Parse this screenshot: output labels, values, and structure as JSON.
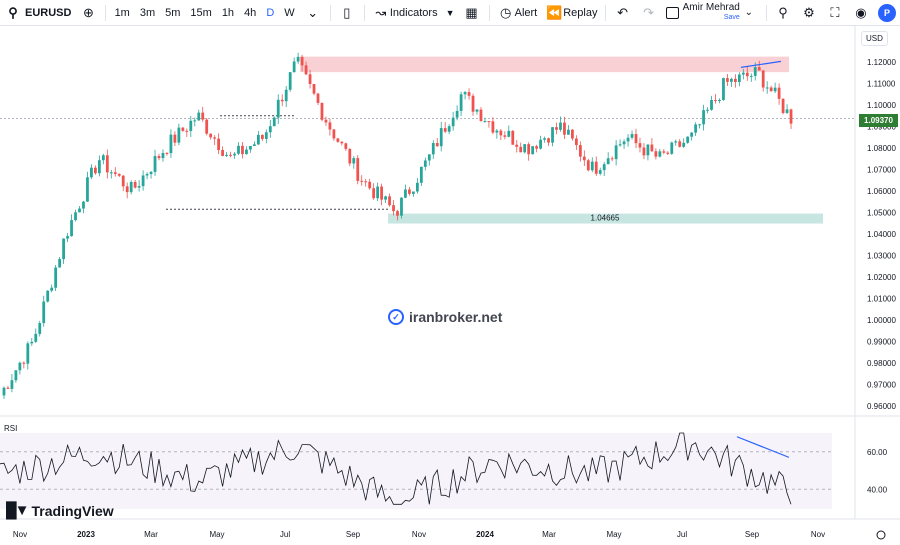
{
  "toolbar": {
    "symbol": "EURUSD",
    "timeframes": [
      "1m",
      "3m",
      "5m",
      "15m",
      "1h",
      "4h",
      "D",
      "W"
    ],
    "active_timeframe": "D",
    "indicators_label": "Indicators",
    "alert_label": "Alert",
    "replay_label": "Replay",
    "user_name": "Amir Mehrad",
    "save_label": "Save",
    "profile_initial": "P"
  },
  "price_axis": {
    "currency": "USD",
    "ticks": [
      "1.12000",
      "1.11000",
      "1.10000",
      "1.09000",
      "1.08000",
      "1.07000",
      "1.06000",
      "1.05000",
      "1.04000",
      "1.03000",
      "1.02000",
      "1.01000",
      "1.00000",
      "0.99000",
      "0.98000",
      "0.97000",
      "0.96000"
    ],
    "last_price": "1.09370"
  },
  "rsi": {
    "label": "RSI",
    "ticks": [
      "60.00",
      "40.00"
    ]
  },
  "time_axis": [
    "Nov",
    "2023",
    "Mar",
    "May",
    "Jul",
    "Sep",
    "Nov",
    "2024",
    "Mar",
    "May",
    "Jul",
    "Sep",
    "Nov"
  ],
  "annotations": {
    "support_label": "1.04665"
  },
  "watermark": "iranbroker.net",
  "brand": "TradingView",
  "colors": {
    "up": "#26a69a",
    "down": "#ef5350",
    "supply_zone": "#f9d0d4",
    "demand_zone": "#c8e6e1",
    "trendline": "#2962ff",
    "last_price_tag": "#2e7d32"
  },
  "chart_data": {
    "type": "candlestick",
    "series": [
      {
        "name": "EURUSD",
        "x": [
          "2022-10",
          "2022-11",
          "2022-12",
          "2023-01",
          "2023-02",
          "2023-03",
          "2023-04",
          "2023-05",
          "2023-06",
          "2023-07",
          "2023-08",
          "2023-09",
          "2023-10",
          "2023-11",
          "2023-12",
          "2024-01",
          "2024-02",
          "2024-03",
          "2024-04",
          "2024-05",
          "2024-06",
          "2024-07",
          "2024-08",
          "2024-09",
          "2024-10"
        ],
        "values": [
          0.965,
          0.99,
          1.04,
          1.075,
          1.06,
          1.08,
          1.095,
          1.075,
          1.085,
          1.12,
          1.09,
          1.065,
          1.05,
          1.075,
          1.105,
          1.09,
          1.08,
          1.09,
          1.07,
          1.085,
          1.075,
          1.085,
          1.11,
          1.115,
          1.094
        ]
      }
    ],
    "rsi": {
      "x": [
        "2022-10",
        "2023-01",
        "2023-04",
        "2023-07",
        "2023-10",
        "2024-01",
        "2024-04",
        "2024-07",
        "2024-10"
      ],
      "values": [
        48,
        60,
        44,
        63,
        32,
        55,
        48,
        65,
        38
      ]
    },
    "ylim": [
      0.96,
      1.125
    ],
    "rsi_ylim": [
      30,
      70
    ]
  }
}
